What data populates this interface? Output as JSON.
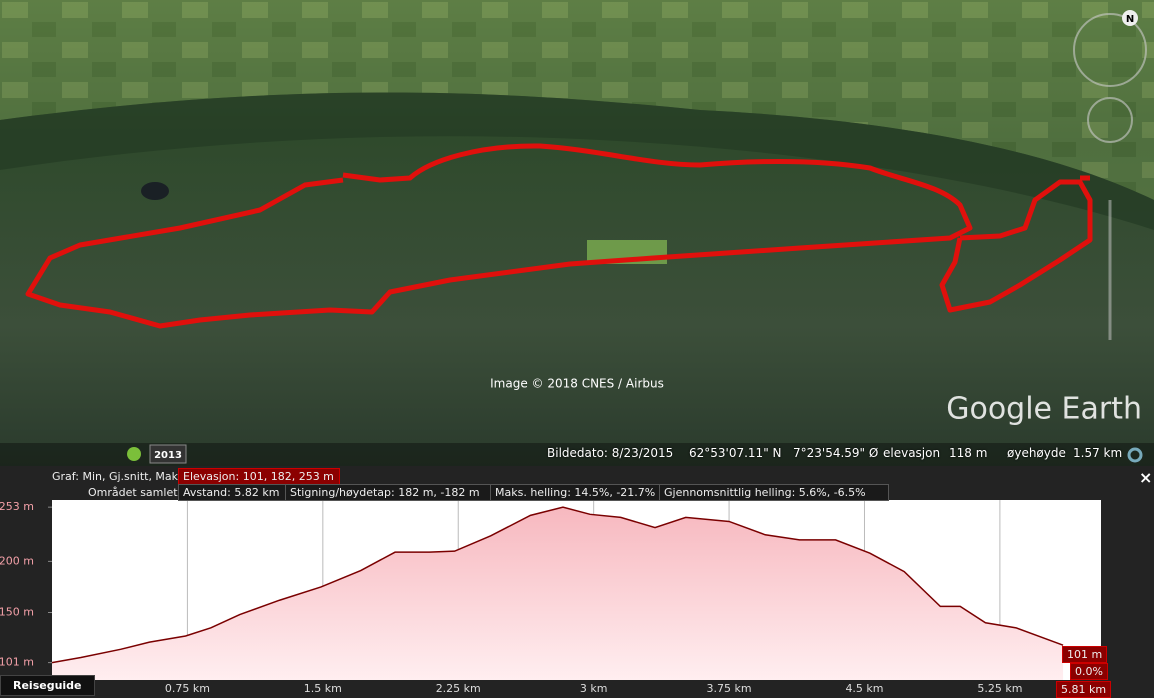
{
  "map": {
    "attribution": "Image © 2018 CNES / Airbus",
    "logo": "Google Earth",
    "year": "2013",
    "status": [
      "Bildedato: 8/23/2015",
      "62°53'07.11\" N",
      "7°23'54.59\" Ø",
      "elevasjon",
      "118 m",
      "øyehøyde",
      "1.57 km"
    ]
  },
  "profile": {
    "graph_label": "Graf: Min, Gj.snitt, Maks",
    "elevation": "Elevasjon: 101, 182, 253 m",
    "summary_label": "Området samlet:",
    "stats": [
      "Avstand: 5.82 km",
      "Stigning/høydetap: 182 m, -182 m",
      "Maks. helling: 14.5%, -21.7%",
      "Gjennomsnittlig helling: 5.6%, -6.5%"
    ],
    "readouts": [
      "101 m",
      "0.0%",
      "5.81 km"
    ],
    "travel_guide": "Reiseguide",
    "close": "×"
  },
  "chart_data": {
    "type": "area",
    "color": "#7a0000",
    "fill": "#f7b8bf",
    "x": [
      0,
      0.16,
      0.38,
      0.54,
      0.74,
      0.88,
      1.04,
      1.26,
      1.49,
      1.71,
      1.9,
      2.09,
      2.23,
      2.43,
      2.65,
      2.83,
      2.98,
      3.15,
      3.34,
      3.51,
      3.75,
      3.95,
      4.14,
      4.34,
      4.53,
      4.72,
      4.92,
      5.03,
      5.17,
      5.34,
      5.6
    ],
    "values": [
      101,
      106,
      114,
      121,
      127,
      135,
      148,
      162,
      175,
      191,
      209,
      209,
      210,
      225,
      245,
      253,
      246,
      243,
      233,
      243,
      239,
      226,
      221,
      221,
      208,
      190,
      156,
      156,
      140,
      135,
      118
    ],
    "xlim": [
      0,
      5.81
    ],
    "xticks": [
      {
        "value": 0.75,
        "label": "0.75 km"
      },
      {
        "value": 1.5,
        "label": "1.5 km"
      },
      {
        "value": 2.25,
        "label": "2.25 km"
      },
      {
        "value": 3,
        "label": "3 km"
      },
      {
        "value": 3.75,
        "label": "3.75 km"
      },
      {
        "value": 4.5,
        "label": "4.5 km"
      },
      {
        "value": 5.25,
        "label": "5.25 km"
      }
    ],
    "ylim": [
      84,
      260
    ],
    "yticks": [
      {
        "value": 101,
        "label": "101 m"
      },
      {
        "value": 150,
        "label": "150 m"
      },
      {
        "value": 200,
        "label": "200 m"
      },
      {
        "value": 253,
        "label": "253 m"
      }
    ],
    "grid": true
  }
}
